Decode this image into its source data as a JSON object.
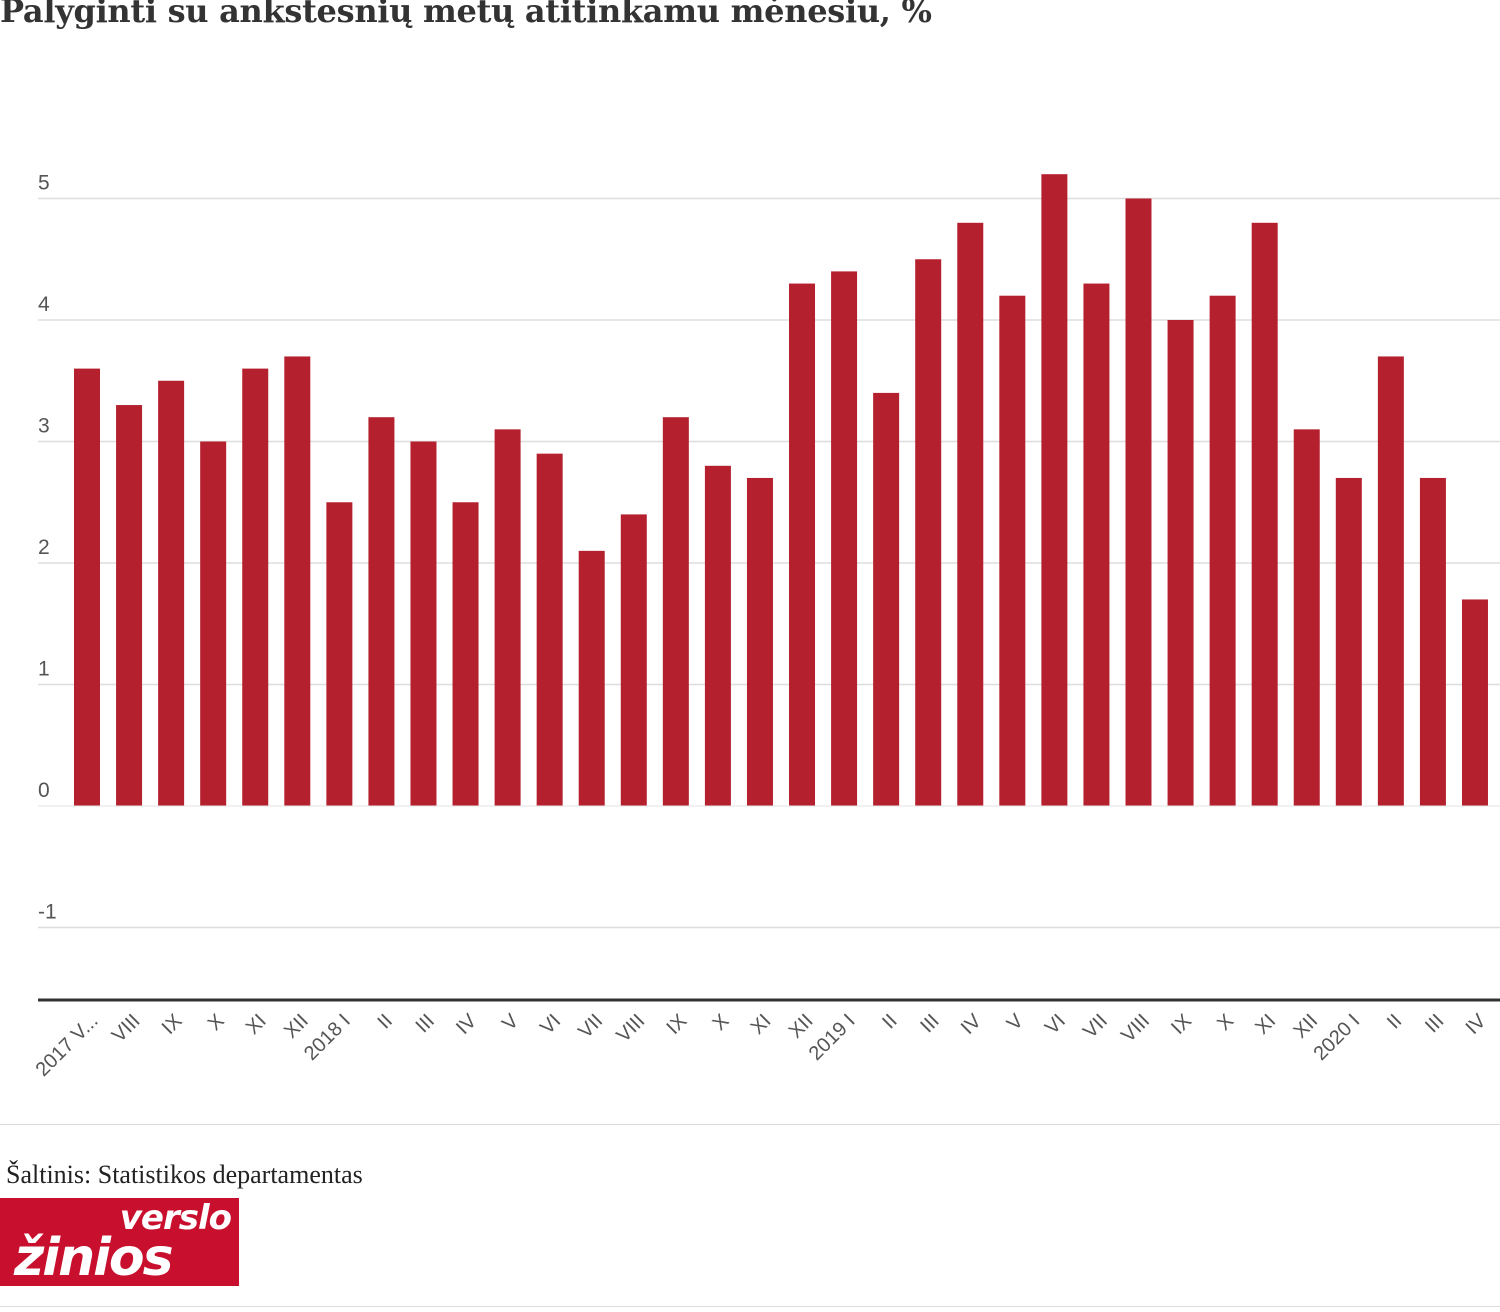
{
  "title": "Palyginti su ankstesnių metų atitinkamu mėnesiu, %",
  "source": "Šaltinis: Statistikos departamentas",
  "logo": {
    "line1": "verslo",
    "line2": "žinios"
  },
  "colors": {
    "bar": "#b5202e",
    "grid": "#dddddd",
    "axis": "#333333",
    "text": "#555555",
    "logo_bg": "#c8102e"
  },
  "chart_data": {
    "type": "bar",
    "title": "Palyginti su ankstesnių metų atitinkamu mėnesiu, %",
    "xlabel": "",
    "ylabel": "",
    "ylim": [
      -1.6,
      5.5
    ],
    "yticks": [
      5,
      4,
      3,
      2,
      1,
      0,
      -1
    ],
    "grid": true,
    "legend": "none",
    "categories": [
      "2017 V...",
      "VIII",
      "IX",
      "X",
      "XI",
      "XII",
      "2018 I",
      "II",
      "III",
      "IV",
      "V",
      "VI",
      "VII",
      "VIII",
      "IX",
      "X",
      "XI",
      "XII",
      "2019 I",
      "II",
      "III",
      "IV",
      "V",
      "VI",
      "VII",
      "VIII",
      "IX",
      "X",
      "XI",
      "XII",
      "2020 I",
      "II",
      "III",
      "IV"
    ],
    "values": [
      3.6,
      3.3,
      3.5,
      3.0,
      3.6,
      3.7,
      2.5,
      3.2,
      3.0,
      2.5,
      3.1,
      2.9,
      2.1,
      2.4,
      3.2,
      2.8,
      2.7,
      4.3,
      4.4,
      3.4,
      4.5,
      4.8,
      4.2,
      5.2,
      4.3,
      5.0,
      4.0,
      4.2,
      4.8,
      3.1,
      2.7,
      3.7,
      2.7,
      1.7
    ]
  }
}
